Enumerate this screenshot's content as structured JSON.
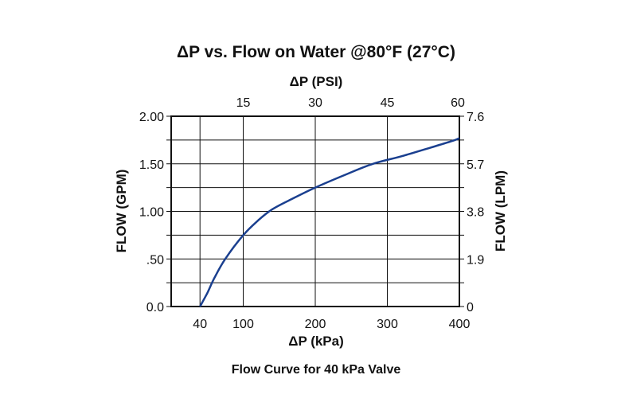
{
  "chart_data": {
    "type": "line",
    "title": "ΔP vs. Flow on Water @80°F (27°C)",
    "caption": "Flow Curve for 40 kPa Valve",
    "xlabel": "ΔP (kPa)",
    "x2label": "ΔP (PSI)",
    "ylabel": "FLOW (GPM)",
    "y2label": "FLOW (LPM)",
    "xlim": [
      0,
      400
    ],
    "ylim": [
      0,
      2.0
    ],
    "x_ticks": [
      {
        "value": 40,
        "label": "40"
      },
      {
        "value": 100,
        "label": "100"
      },
      {
        "value": 200,
        "label": "200"
      },
      {
        "value": 300,
        "label": "300"
      },
      {
        "value": 400,
        "label": "400"
      }
    ],
    "x2_ticks": [
      {
        "value": 15,
        "label": "15"
      },
      {
        "value": 30,
        "label": "30"
      },
      {
        "value": 45,
        "label": "45"
      },
      {
        "value": 60,
        "label": "60"
      }
    ],
    "x2lim": [
      0,
      60
    ],
    "y_ticks": [
      {
        "value": 0,
        "label": "0.0"
      },
      {
        "value": 0.5,
        "label": ".50"
      },
      {
        "value": 1.0,
        "label": "1.00"
      },
      {
        "value": 1.5,
        "label": "1.50"
      },
      {
        "value": 2.0,
        "label": "2.00"
      }
    ],
    "y2_ticks": [
      {
        "value": 0,
        "label": "0"
      },
      {
        "value": 0.5,
        "label": "1.9"
      },
      {
        "value": 1.0,
        "label": "3.8"
      },
      {
        "value": 1.5,
        "label": "5.7"
      },
      {
        "value": 2.0,
        "label": "7.6"
      }
    ],
    "y_minor_gridlines": [
      0.25,
      0.75,
      1.25,
      1.75
    ],
    "grid": true,
    "series": [
      {
        "color": "#1a3f8f",
        "x": [
          40,
          50,
          60,
          75,
          100,
          120,
          140,
          170,
          200,
          240,
          280,
          320,
          360,
          390,
          400
        ],
        "y": [
          0,
          0.14,
          0.3,
          0.5,
          0.75,
          0.9,
          1.02,
          1.14,
          1.25,
          1.38,
          1.5,
          1.58,
          1.67,
          1.74,
          1.77
        ]
      }
    ]
  }
}
